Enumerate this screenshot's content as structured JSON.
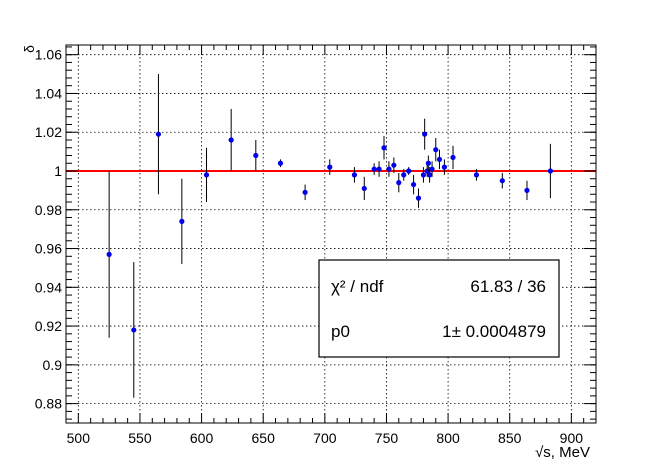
{
  "chart_data": {
    "type": "scatter",
    "title": "",
    "xlabel": "√s, MeV",
    "ylabel": "δ",
    "xlim": [
      490,
      920
    ],
    "ylim": [
      0.87,
      1.065
    ],
    "xticks": [
      500,
      550,
      600,
      650,
      700,
      750,
      800,
      850,
      900
    ],
    "yticks": [
      0.88,
      0.9,
      0.92,
      0.94,
      0.96,
      0.98,
      1,
      1.02,
      1.04,
      1.06
    ],
    "ytick_labels": [
      "0.88",
      "0.9",
      "0.92",
      "0.94",
      "0.96",
      "0.98",
      "1",
      "1.02",
      "1.04",
      "1.06"
    ],
    "grid": true,
    "fit_line": {
      "y": 1.0,
      "color": "#ff0000"
    },
    "marker_color": "#0000ee",
    "points": [
      {
        "x": 525,
        "y": 0.957,
        "err": 0.043
      },
      {
        "x": 545,
        "y": 0.918,
        "err": 0.035
      },
      {
        "x": 565,
        "y": 1.019,
        "err": 0.031
      },
      {
        "x": 584,
        "y": 0.974,
        "err": 0.022
      },
      {
        "x": 604,
        "y": 0.998,
        "err": 0.014
      },
      {
        "x": 624,
        "y": 1.016,
        "err": 0.016
      },
      {
        "x": 644,
        "y": 1.008,
        "err": 0.008
      },
      {
        "x": 664,
        "y": 1.004,
        "err": 0.002
      },
      {
        "x": 684,
        "y": 0.989,
        "err": 0.004
      },
      {
        "x": 704,
        "y": 1.002,
        "err": 0.004
      },
      {
        "x": 724,
        "y": 0.998,
        "err": 0.004
      },
      {
        "x": 732,
        "y": 0.991,
        "err": 0.006
      },
      {
        "x": 740,
        "y": 1.001,
        "err": 0.003
      },
      {
        "x": 744,
        "y": 1.001,
        "err": 0.004
      },
      {
        "x": 748,
        "y": 1.012,
        "err": 0.006
      },
      {
        "x": 752,
        "y": 1.001,
        "err": 0.004
      },
      {
        "x": 756,
        "y": 1.003,
        "err": 0.004
      },
      {
        "x": 760,
        "y": 0.994,
        "err": 0.005
      },
      {
        "x": 764,
        "y": 0.998,
        "err": 0.003
      },
      {
        "x": 768,
        "y": 1.0,
        "err": 0.002
      },
      {
        "x": 772,
        "y": 0.993,
        "err": 0.005
      },
      {
        "x": 776,
        "y": 0.986,
        "err": 0.005
      },
      {
        "x": 780,
        "y": 0.998,
        "err": 0.004
      },
      {
        "x": 781,
        "y": 1.019,
        "err": 0.008
      },
      {
        "x": 783,
        "y": 1.0,
        "err": 0.003
      },
      {
        "x": 784,
        "y": 1.004,
        "err": 0.004
      },
      {
        "x": 785,
        "y": 0.998,
        "err": 0.004
      },
      {
        "x": 787,
        "y": 1.001,
        "err": 0.004
      },
      {
        "x": 790,
        "y": 1.011,
        "err": 0.006
      },
      {
        "x": 793,
        "y": 1.006,
        "err": 0.005
      },
      {
        "x": 797,
        "y": 1.002,
        "err": 0.004
      },
      {
        "x": 804,
        "y": 1.007,
        "err": 0.006
      },
      {
        "x": 823,
        "y": 0.998,
        "err": 0.003
      },
      {
        "x": 844,
        "y": 0.995,
        "err": 0.004
      },
      {
        "x": 864,
        "y": 0.99,
        "err": 0.005
      },
      {
        "x": 883,
        "y": 1.0,
        "err": 0.014
      }
    ]
  },
  "stats_box": {
    "chi2_label": "χ² / ndf",
    "chi2_value": "61.83 / 36",
    "p0_label": "p0",
    "p0_value": "1± 0.0004879"
  }
}
